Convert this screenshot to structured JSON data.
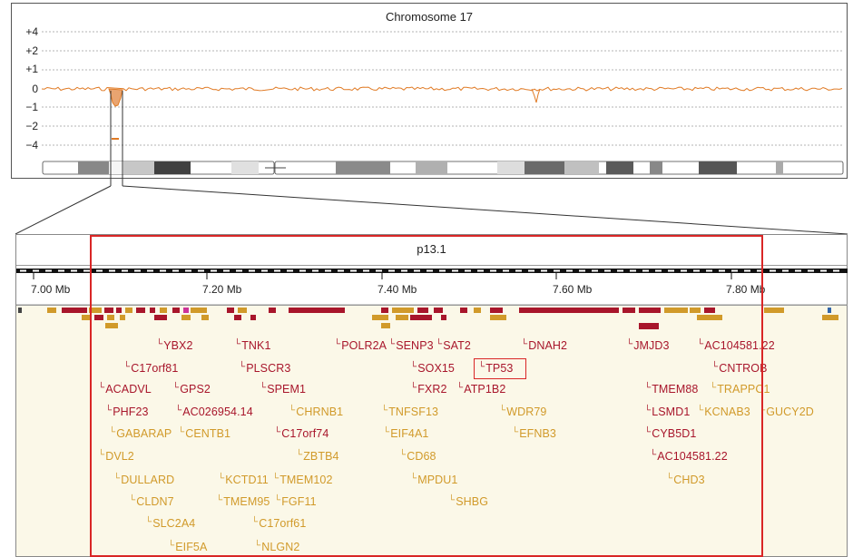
{
  "top_panel": {
    "title": "Chromosome 17",
    "y_ticks": [
      "+4",
      "+2",
      "+1",
      "0",
      "−1",
      "−2",
      "−4"
    ]
  },
  "bottom_panel": {
    "band": "p13.1",
    "scale_labels": [
      "7.00 Mb",
      "7.20 Mb",
      "7.40 Mb",
      "7.60 Mb",
      "7.80 Mb"
    ]
  },
  "colors": {
    "coding_gene": "#a8162b",
    "noncoding_gene": "#d19a2a",
    "trace": "#e07a24",
    "highlight": "#d92626"
  },
  "genes": [
    {
      "name": "YBX2",
      "color": "red"
    },
    {
      "name": "TNK1",
      "color": "red"
    },
    {
      "name": "POLR2A",
      "color": "red"
    },
    {
      "name": "SENP3",
      "color": "red"
    },
    {
      "name": "SAT2",
      "color": "red"
    },
    {
      "name": "DNAH2",
      "color": "red"
    },
    {
      "name": "JMJD3",
      "color": "red"
    },
    {
      "name": "AC104581.22",
      "color": "red"
    },
    {
      "name": "C17orf81",
      "color": "red"
    },
    {
      "name": "PLSCR3",
      "color": "red"
    },
    {
      "name": "SOX15",
      "color": "red"
    },
    {
      "name": "TP53",
      "color": "red"
    },
    {
      "name": "CNTROB",
      "color": "red"
    },
    {
      "name": "ACADVL",
      "color": "red"
    },
    {
      "name": "GPS2",
      "color": "red"
    },
    {
      "name": "SPEM1",
      "color": "red"
    },
    {
      "name": "FXR2",
      "color": "red"
    },
    {
      "name": "ATP1B2",
      "color": "red"
    },
    {
      "name": "TMEM88",
      "color": "red"
    },
    {
      "name": "TRAPPC1",
      "color": "gold"
    },
    {
      "name": "PHF23",
      "color": "red"
    },
    {
      "name": "AC026954.14",
      "color": "red"
    },
    {
      "name": "CHRNB1",
      "color": "gold"
    },
    {
      "name": "TNFSF13",
      "color": "gold"
    },
    {
      "name": "WDR79",
      "color": "gold"
    },
    {
      "name": "LSMD1",
      "color": "red"
    },
    {
      "name": "KCNAB3",
      "color": "gold"
    },
    {
      "name": "GUCY2D",
      "color": "gold"
    },
    {
      "name": "GABARAP",
      "color": "gold"
    },
    {
      "name": "CENTB1",
      "color": "gold"
    },
    {
      "name": "C17orf74",
      "color": "red"
    },
    {
      "name": "EIF4A1",
      "color": "gold"
    },
    {
      "name": "EFNB3",
      "color": "gold"
    },
    {
      "name": "CYB5D1",
      "color": "red"
    },
    {
      "name": "DVL2",
      "color": "gold"
    },
    {
      "name": "ZBTB4",
      "color": "gold"
    },
    {
      "name": "CD68",
      "color": "gold"
    },
    {
      "name": "AC104581.22",
      "color": "red"
    },
    {
      "name": "DULLARD",
      "color": "gold"
    },
    {
      "name": "KCTD11",
      "color": "gold"
    },
    {
      "name": "TMEM102",
      "color": "gold"
    },
    {
      "name": "MPDU1",
      "color": "gold"
    },
    {
      "name": "CHD3",
      "color": "gold"
    },
    {
      "name": "CLDN7",
      "color": "gold"
    },
    {
      "name": "TMEM95",
      "color": "gold"
    },
    {
      "name": "FGF11",
      "color": "gold"
    },
    {
      "name": "SHBG",
      "color": "gold"
    },
    {
      "name": "SLC2A4",
      "color": "gold"
    },
    {
      "name": "C17orf61",
      "color": "gold"
    },
    {
      "name": "EIF5A",
      "color": "gold"
    },
    {
      "name": "NLGN2",
      "color": "gold"
    }
  ]
}
